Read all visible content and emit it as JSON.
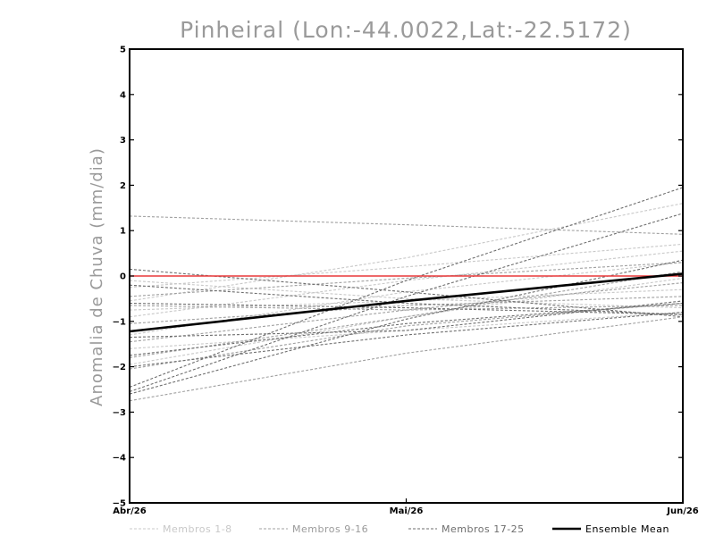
{
  "chart_data": {
    "type": "line",
    "title": "Pinheiral (Lon:-44.0022,Lat:-22.5172)",
    "ylabel": "Anomalia de Chuva (mm/dia)",
    "xlabel": "",
    "categories": [
      "Abr/26",
      "Mai/26",
      "Jun/26"
    ],
    "ylim": [
      -5,
      5
    ],
    "yticks": [
      -5,
      -4,
      -3,
      -2,
      -1,
      0,
      1,
      2,
      3,
      4,
      5
    ],
    "reference_line": {
      "value": 0,
      "color": "#e8393a"
    },
    "colors": {
      "group_1_8": "#c8c8c8",
      "group_9_16": "#a0a0a0",
      "group_17_25": "#6e6e6e",
      "ensemble_mean": "#000000"
    },
    "legend": [
      {
        "label": "Membros 1-8",
        "group": "group_1_8",
        "style": "dashed",
        "text_color": "#c8c8c8"
      },
      {
        "label": "Membros 9-16",
        "group": "group_9_16",
        "style": "dashed",
        "text_color": "#9a9a9a"
      },
      {
        "label": "Membros 17-25",
        "group": "group_17_25",
        "style": "dashed",
        "text_color": "#6e6e6e"
      },
      {
        "label": "Ensemble Mean",
        "group": "ensemble_mean",
        "style": "solid",
        "text_color": "#000000"
      }
    ],
    "series": [
      {
        "group": "group_1_8",
        "values": [
          -0.25,
          0.2,
          0.7
        ]
      },
      {
        "group": "group_1_8",
        "values": [
          -0.55,
          0.4,
          1.6
        ]
      },
      {
        "group": "group_1_8",
        "values": [
          -0.9,
          -0.1,
          0.55
        ]
      },
      {
        "group": "group_1_8",
        "values": [
          -1.3,
          -0.35,
          0.3
        ]
      },
      {
        "group": "group_1_8",
        "values": [
          -1.95,
          -0.9,
          -0.05
        ]
      },
      {
        "group": "group_1_8",
        "values": [
          -0.1,
          -0.5,
          -0.7
        ]
      },
      {
        "group": "group_1_8",
        "values": [
          -1.6,
          -1.2,
          -0.8
        ]
      },
      {
        "group": "group_1_8",
        "values": [
          -0.75,
          -0.55,
          -0.3
        ]
      },
      {
        "group": "group_9_16",
        "values": [
          1.32,
          1.13,
          0.92
        ]
      },
      {
        "group": "group_9_16",
        "values": [
          -2.75,
          -1.7,
          -0.9
        ]
      },
      {
        "group": "group_9_16",
        "values": [
          -1.45,
          -0.75,
          -0.15
        ]
      },
      {
        "group": "group_9_16",
        "values": [
          -0.45,
          -0.05,
          0.3
        ]
      },
      {
        "group": "group_9_16",
        "values": [
          -1.05,
          -0.65,
          -0.45
        ]
      },
      {
        "group": "group_9_16",
        "values": [
          -0.65,
          -0.75,
          -0.65
        ]
      },
      {
        "group": "group_9_16",
        "values": [
          -2.05,
          -1.1,
          -0.6
        ]
      },
      {
        "group": "group_9_16",
        "values": [
          -1.8,
          -0.9,
          0.1
        ]
      },
      {
        "group": "group_17_25",
        "values": [
          -2.45,
          -0.1,
          1.95
        ]
      },
      {
        "group": "group_17_25",
        "values": [
          -2.55,
          -0.45,
          1.38
        ]
      },
      {
        "group": "group_17_25",
        "values": [
          -2.6,
          -0.95,
          0.35
        ]
      },
      {
        "group": "group_17_25",
        "values": [
          0.15,
          -0.35,
          -0.9
        ]
      },
      {
        "group": "group_17_25",
        "values": [
          -0.2,
          -0.6,
          -0.85
        ]
      },
      {
        "group": "group_17_25",
        "values": [
          -1.35,
          -1.2,
          -0.55
        ]
      },
      {
        "group": "group_17_25",
        "values": [
          -1.75,
          -1.05,
          -0.6
        ]
      },
      {
        "group": "group_17_25",
        "values": [
          -2.0,
          -1.3,
          -0.8
        ]
      },
      {
        "group": "group_17_25",
        "values": [
          -0.6,
          -0.7,
          -0.85
        ]
      },
      {
        "group": "ensemble_mean",
        "values": [
          -1.22,
          -0.55,
          0.05
        ]
      }
    ],
    "grid": false,
    "legend_position": "bottom"
  }
}
